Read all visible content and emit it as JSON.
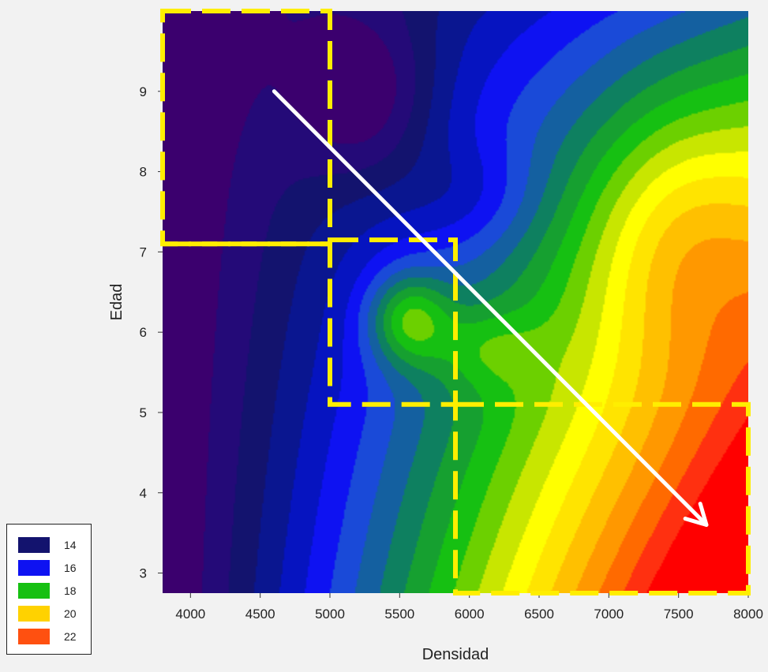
{
  "chart_data": {
    "type": "heatmap",
    "subtype": "filled-contour",
    "xlabel": "Densidad",
    "ylabel": "Edad",
    "xlim": [
      3800,
      8000
    ],
    "ylim": [
      2.75,
      10.0
    ],
    "x_ticks": [
      4000,
      4500,
      5000,
      5500,
      6000,
      6500,
      7000,
      7500,
      8000
    ],
    "y_ticks": [
      3,
      4,
      5,
      6,
      7,
      8,
      9
    ],
    "z_range": [
      13.2,
      23.0
    ],
    "legend": {
      "position": "bottom-left",
      "entries": [
        {
          "label": "14",
          "color": "#13136e"
        },
        {
          "label": "16",
          "color": "#0e12f2"
        },
        {
          "label": "18",
          "color": "#16c012"
        },
        {
          "label": "20",
          "color": "#ffd200"
        },
        {
          "label": "22",
          "color": "#ff5010"
        }
      ]
    },
    "contour_levels": [
      {
        "z": 13.5,
        "color": "#3b006e"
      },
      {
        "z": 14.0,
        "color": "#240a78"
      },
      {
        "z": 14.5,
        "color": "#13136e"
      },
      {
        "z": 15.0,
        "color": "#0a1690"
      },
      {
        "z": 15.5,
        "color": "#0614c0"
      },
      {
        "z": 16.0,
        "color": "#0e12f2"
      },
      {
        "z": 16.5,
        "color": "#1a4ad8"
      },
      {
        "z": 17.0,
        "color": "#1460a0"
      },
      {
        "z": 17.5,
        "color": "#0e8060"
      },
      {
        "z": 18.0,
        "color": "#16a030"
      },
      {
        "z": 18.5,
        "color": "#16c012"
      },
      {
        "z": 19.0,
        "color": "#6cd000"
      },
      {
        "z": 19.5,
        "color": "#c8e600"
      },
      {
        "z": 20.0,
        "color": "#ffff00"
      },
      {
        "z": 20.5,
        "color": "#ffe400"
      },
      {
        "z": 21.0,
        "color": "#ffc000"
      },
      {
        "z": 21.5,
        "color": "#ff9800"
      },
      {
        "z": 22.0,
        "color": "#ff6a00"
      },
      {
        "z": 22.5,
        "color": "#ff3010"
      },
      {
        "z": 23.0,
        "color": "#ff0000"
      }
    ],
    "highlight_regions": [
      {
        "x": [
          3800,
          5000
        ],
        "y": [
          7.1,
          10.0
        ]
      },
      {
        "x": [
          5000,
          5900
        ],
        "y": [
          5.1,
          7.15
        ]
      },
      {
        "x": [
          5900,
          8000
        ],
        "y": [
          2.75,
          5.1
        ]
      }
    ],
    "highlight_line": {
      "orientation": "horizontal",
      "y": 7.1,
      "x": [
        3800,
        5000
      ]
    },
    "trend_arrow": {
      "from": [
        4600,
        9.0
      ],
      "to": [
        7700,
        3.6
      ],
      "color": "#ffffff"
    },
    "colors": {
      "highlight": "#ffee00",
      "arrow": "#ffffff",
      "background": "#f2f2f2"
    }
  }
}
